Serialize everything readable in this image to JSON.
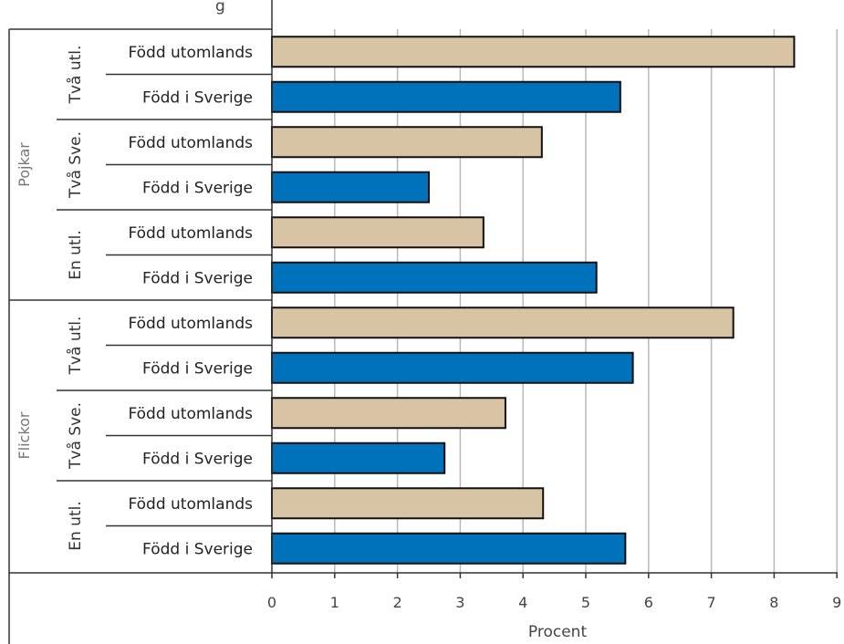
{
  "chart_data": {
    "type": "bar",
    "orientation": "horizontal",
    "xlabel": "Procent",
    "xlim": [
      0,
      9
    ],
    "x_ticks": [
      "0",
      "1",
      "2",
      "3",
      "4",
      "5",
      "6",
      "7",
      "8",
      "9"
    ],
    "grid": "vertical",
    "top_fragment": "g",
    "groups": [
      {
        "label": "Pojkar",
        "subgroups": [
          {
            "label": "Två utl.",
            "bars": [
              {
                "category": "Född utomlands",
                "value": 8.32,
                "color": "#d8c3a5"
              },
              {
                "category": "Född i Sverige",
                "value": 5.55,
                "color": "#0072bc"
              }
            ]
          },
          {
            "label": "Två Sve.",
            "bars": [
              {
                "category": "Född utomlands",
                "value": 4.3,
                "color": "#d8c3a5"
              },
              {
                "category": "Född i Sverige",
                "value": 2.5,
                "color": "#0072bc"
              }
            ]
          },
          {
            "label": "En utl.",
            "bars": [
              {
                "category": "Född utomlands",
                "value": 3.37,
                "color": "#d8c3a5"
              },
              {
                "category": "Född i Sverige",
                "value": 5.17,
                "color": "#0072bc"
              }
            ]
          }
        ]
      },
      {
        "label": "Flickor",
        "subgroups": [
          {
            "label": "Två utl.",
            "bars": [
              {
                "category": "Född utomlands",
                "value": 7.35,
                "color": "#d8c3a5"
              },
              {
                "category": "Född i Sverige",
                "value": 5.75,
                "color": "#0072bc"
              }
            ]
          },
          {
            "label": "Två Sve.",
            "bars": [
              {
                "category": "Född utomlands",
                "value": 3.72,
                "color": "#d8c3a5"
              },
              {
                "category": "Född i Sverige",
                "value": 2.75,
                "color": "#0072bc"
              }
            ]
          },
          {
            "label": "En utl.",
            "bars": [
              {
                "category": "Född utomlands",
                "value": 4.32,
                "color": "#d8c3a5"
              },
              {
                "category": "Född i Sverige",
                "value": 5.63,
                "color": "#0072bc"
              }
            ]
          }
        ]
      }
    ]
  }
}
